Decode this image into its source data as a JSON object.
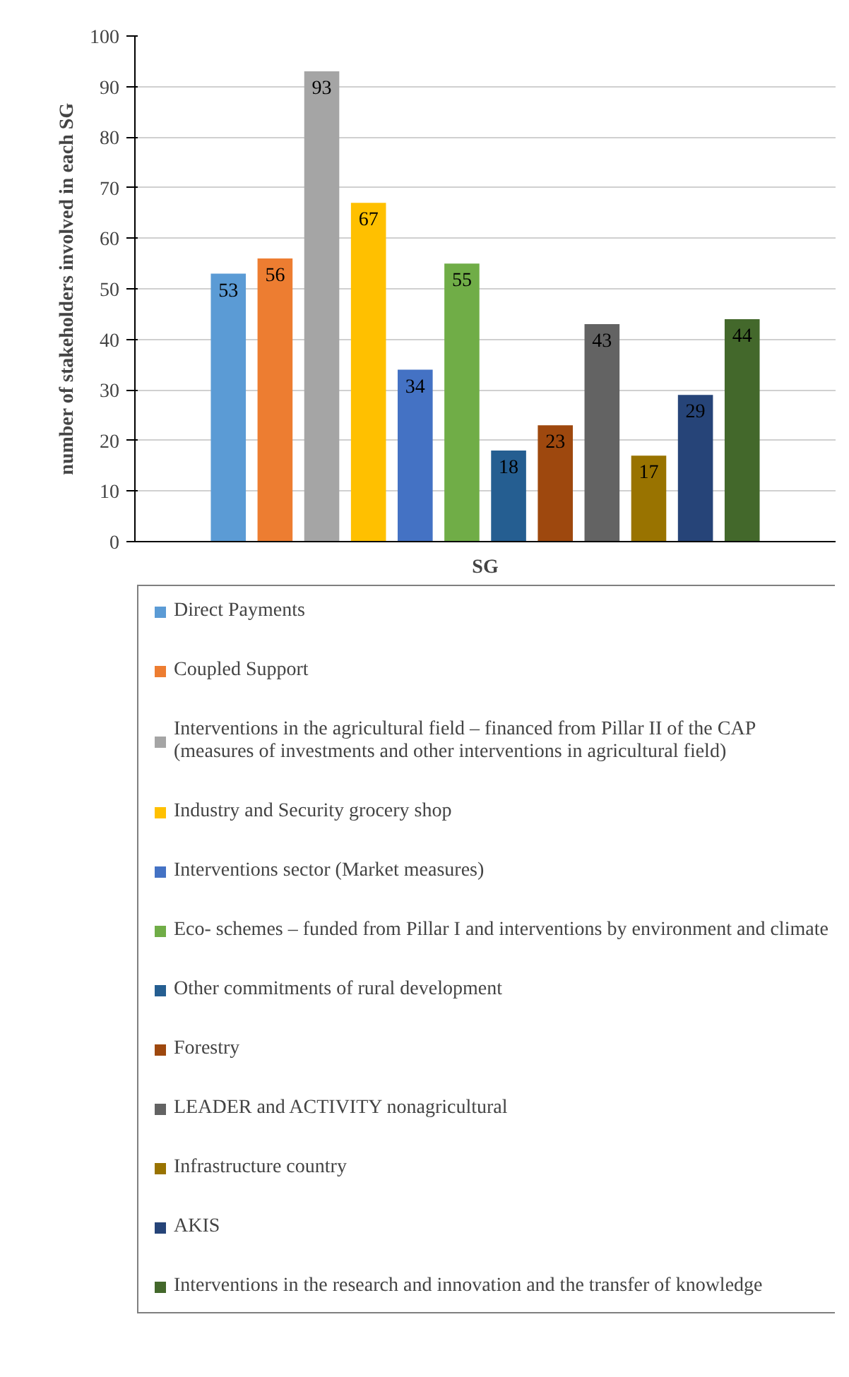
{
  "chart_data": {
    "type": "bar",
    "xlabel": "SG",
    "ylabel": "number of stakeholders involved in each SG",
    "categories": [
      null
    ],
    "ylim": [
      0,
      100
    ],
    "yticks": [
      0,
      10,
      20,
      30,
      40,
      50,
      60,
      70,
      80,
      90,
      100
    ],
    "grid": "y",
    "legend": "bottom",
    "data_labels": true,
    "series": [
      {
        "name": "Direct Payments",
        "color": "#5b9bd5",
        "values": [
          53
        ]
      },
      {
        "name": "Coupled Support",
        "color": "#ed7d31",
        "values": [
          56
        ]
      },
      {
        "name": "Interventions in the agricultural field – financed from Pillar II of the CAP (measures of investments and other interventions in agricultural field)",
        "color": "#a5a5a5",
        "values": [
          93
        ]
      },
      {
        "name": "Industry and Security grocery shop",
        "color": "#ffc000",
        "values": [
          67
        ]
      },
      {
        "name": "Interventions sector (Market measures)",
        "color": "#4472c4",
        "values": [
          34
        ]
      },
      {
        "name": "Eco- schemes – funded from Pillar I and interventions by environment and climate",
        "color": "#70ad47",
        "values": [
          55
        ]
      },
      {
        "name": "Other commitments of rural development",
        "color": "#255e91",
        "values": [
          18
        ]
      },
      {
        "name": "Forestry",
        "color": "#9e480e",
        "values": [
          23
        ]
      },
      {
        "name": "LEADER and ACTIVITY nonagricultural",
        "color": "#636363",
        "values": [
          43
        ]
      },
      {
        "name": "Infrastructure country",
        "color": "#997300",
        "values": [
          17
        ]
      },
      {
        "name": "AKIS",
        "color": "#264478",
        "values": [
          29
        ]
      },
      {
        "name": "Interventions in the research and innovation and the transfer of knowledge",
        "color": "#43682b",
        "values": [
          44
        ]
      }
    ]
  }
}
